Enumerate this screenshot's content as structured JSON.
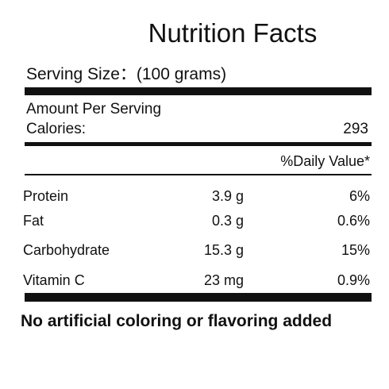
{
  "label": {
    "title": "Nutrition Facts",
    "serving_size": "Serving Size：(100 grams)",
    "amount_per_serving": "Amount Per Serving",
    "calories_label": "Calories:",
    "calories_value": "293",
    "daily_value_header": "%Daily Value*",
    "nutrients": [
      {
        "name": "Protein",
        "amount": "3.9 g",
        "daily_value": "6%"
      },
      {
        "name": "Fat",
        "amount": "0.3 g",
        "daily_value": "0.6%"
      },
      {
        "name": "Carbohydrate",
        "amount": "15.3 g",
        "daily_value": "15%"
      },
      {
        "name": "Vitamin  C",
        "amount": "23 mg",
        "daily_value": "0.9%"
      }
    ],
    "footer_note": "No artificial  coloring or flavoring added"
  }
}
